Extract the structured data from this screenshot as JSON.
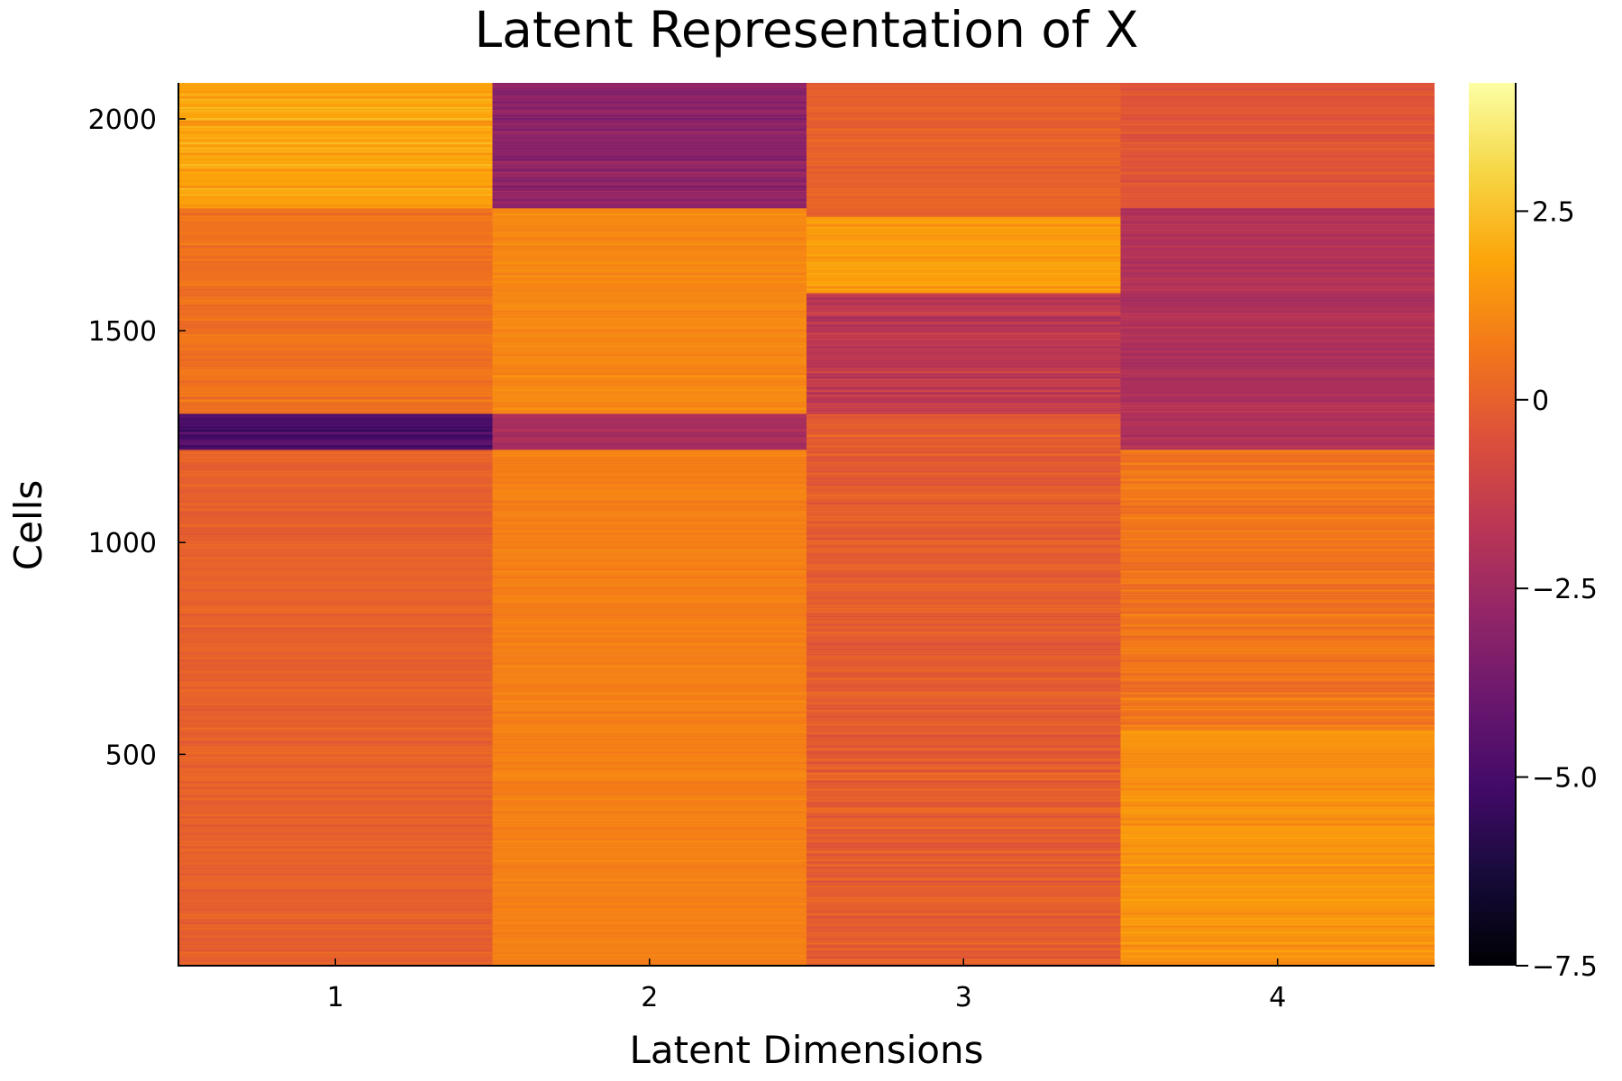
{
  "chart_data": {
    "type": "heatmap",
    "title": "Latent Representation of X",
    "xlabel": "Latent Dimensions",
    "ylabel": "Cells",
    "x_categories": [
      1,
      2,
      3,
      4
    ],
    "xticks": [
      "1",
      "2",
      "3",
      "4"
    ],
    "ylim": [
      1,
      2085
    ],
    "yticks": [
      500,
      1000,
      1500,
      2000
    ],
    "ytick_labels": [
      "500",
      "1000",
      "1500",
      "2000"
    ],
    "colormap": "inferno",
    "color_range": [
      -7.5,
      4.2
    ],
    "colorbar_ticks": [
      2.5,
      0,
      -2.5,
      -5.0,
      -7.5
    ],
    "colorbar_tick_labels": [
      "2.5",
      "0",
      "−2.5",
      "−5.0",
      "−7.5"
    ],
    "segments": [
      {
        "column": 1,
        "y_start": 1,
        "y_end": 1220,
        "value": 0.0,
        "noise": 0.35
      },
      {
        "column": 1,
        "y_start": 1220,
        "y_end": 1305,
        "value": -4.8,
        "noise": 0.8
      },
      {
        "column": 1,
        "y_start": 1305,
        "y_end": 1790,
        "value": 0.5,
        "noise": 0.4
      },
      {
        "column": 1,
        "y_start": 1790,
        "y_end": 2085,
        "value": 1.8,
        "noise": 0.6
      },
      {
        "column": 2,
        "y_start": 1,
        "y_end": 1220,
        "value": 0.9,
        "noise": 0.3
      },
      {
        "column": 2,
        "y_start": 1220,
        "y_end": 1305,
        "value": -2.2,
        "noise": 0.4
      },
      {
        "column": 2,
        "y_start": 1305,
        "y_end": 1790,
        "value": 1.1,
        "noise": 0.3
      },
      {
        "column": 2,
        "y_start": 1790,
        "y_end": 2085,
        "value": -3.0,
        "noise": 0.6
      },
      {
        "column": 3,
        "y_start": 1,
        "y_end": 1305,
        "value": -0.1,
        "noise": 0.5
      },
      {
        "column": 3,
        "y_start": 1305,
        "y_end": 1590,
        "value": -1.6,
        "noise": 0.8
      },
      {
        "column": 3,
        "y_start": 1590,
        "y_end": 1770,
        "value": 1.6,
        "noise": 0.5
      },
      {
        "column": 3,
        "y_start": 1770,
        "y_end": 2085,
        "value": 0.0,
        "noise": 0.4
      },
      {
        "column": 4,
        "y_start": 1,
        "y_end": 560,
        "value": 1.4,
        "noise": 0.45
      },
      {
        "column": 4,
        "y_start": 560,
        "y_end": 1220,
        "value": 0.6,
        "noise": 0.5
      },
      {
        "column": 4,
        "y_start": 1220,
        "y_end": 1790,
        "value": -2.0,
        "noise": 0.5
      },
      {
        "column": 4,
        "y_start": 1790,
        "y_end": 2085,
        "value": -0.4,
        "noise": 0.4
      }
    ]
  }
}
